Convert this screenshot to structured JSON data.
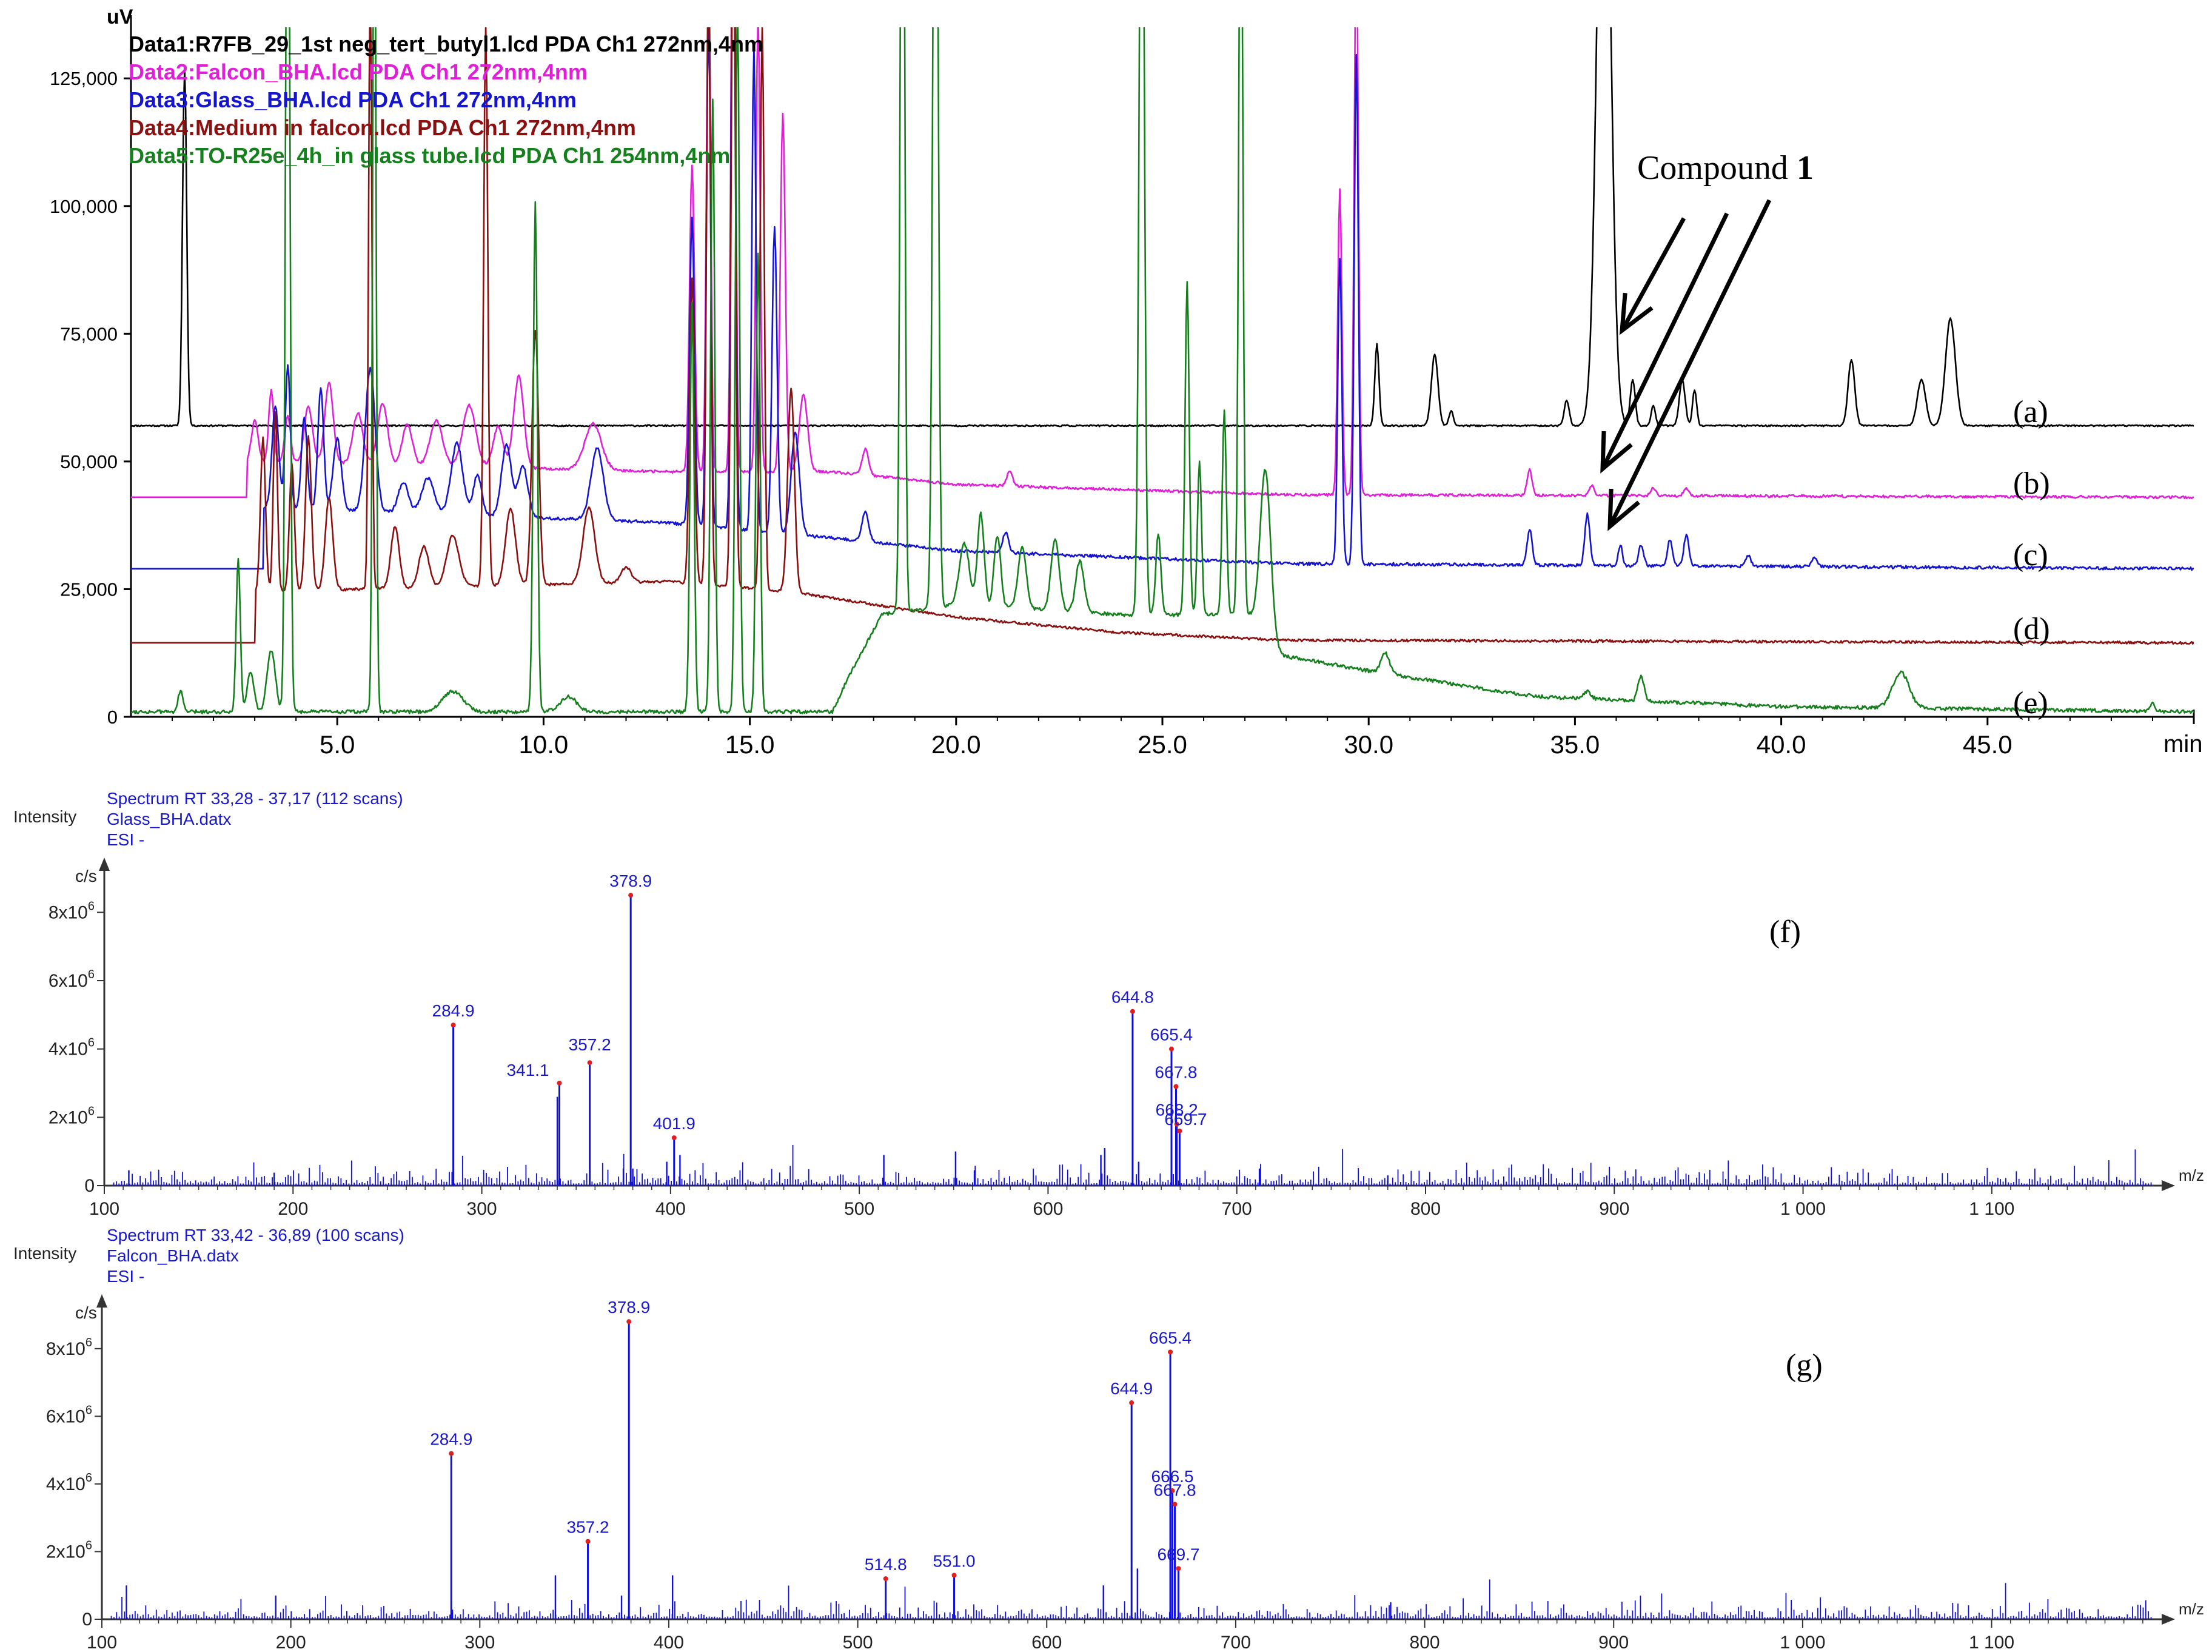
{
  "chart_data": [
    {
      "type": "line",
      "ylabel": "uV",
      "xunit": "min",
      "xlim": [
        0,
        50
      ],
      "ylim": [
        0,
        135000
      ],
      "xticks": [
        "5.0",
        "10.0",
        "15.0",
        "20.0",
        "25.0",
        "30.0",
        "35.0",
        "40.0",
        "45.0"
      ],
      "yticks": [
        "0",
        "25,000",
        "50,000",
        "75,000",
        "100,000",
        "125,000"
      ],
      "series": [
        {
          "name": "Data1:R7FB_29_1st neg_tert_butyl1.lcd PDA Ch1 272nm,4nm",
          "trace_label": "(a)",
          "color": "#000000",
          "baseline": 57000
        },
        {
          "name": "Data2:Falcon_BHA.lcd PDA Ch1 272nm,4nm",
          "trace_label": "(b)",
          "color": "#e020d8",
          "baseline": 43000
        },
        {
          "name": "Data3:Glass_BHA.lcd PDA Ch1 272nm,4nm",
          "trace_label": "(c)",
          "color": "#1515d0",
          "baseline": 29000
        },
        {
          "name": "Data4:Medium in falcon.lcd PDA Ch1 272nm,4nm",
          "trace_label": "(d)",
          "color": "#8b1010",
          "baseline": 14500
        },
        {
          "name": "Data5:TO-R25e_4h_in glass tube.lcd PDA Ch1 254nm,4nm",
          "trace_label": "(e)",
          "color": "#15801d",
          "baseline": 0
        }
      ],
      "annotation": {
        "text": "Compound ",
        "bold": "1"
      }
    },
    {
      "type": "bar",
      "panel_label": "(f)",
      "ylabel": "Intensity",
      "yunit": "c/s",
      "xunit": "m/z",
      "header": [
        "Spectrum RT 33,28 - 37,17 (112 scans)",
        "Glass_BHA.datx",
        "ESI -"
      ],
      "xlim": [
        100,
        1190
      ],
      "ylim": [
        0,
        9000000
      ],
      "xticks": [
        "100",
        "200",
        "300",
        "400",
        "500",
        "600",
        "700",
        "800",
        "900",
        "1 000",
        "1 100"
      ],
      "yticks": [
        {
          "base": "0",
          "exp": ""
        },
        {
          "base": "2x10",
          "exp": "6"
        },
        {
          "base": "4x10",
          "exp": "6"
        },
        {
          "base": "6x10",
          "exp": "6"
        },
        {
          "base": "8x10",
          "exp": "6"
        }
      ],
      "peaks": [
        {
          "mz": 284.9,
          "intensity": 4700000,
          "label": "284.9"
        },
        {
          "mz": 341.1,
          "intensity": 3000000,
          "label": "341.1"
        },
        {
          "mz": 357.2,
          "intensity": 3600000,
          "label": "357.2"
        },
        {
          "mz": 378.9,
          "intensity": 8500000,
          "label": "378.9"
        },
        {
          "mz": 401.9,
          "intensity": 1400000,
          "label": "401.9"
        },
        {
          "mz": 644.8,
          "intensity": 5100000,
          "label": "644.8"
        },
        {
          "mz": 665.4,
          "intensity": 4000000,
          "label": "665.4"
        },
        {
          "mz": 667.8,
          "intensity": 2900000,
          "label": "667.8"
        },
        {
          "mz": 668.2,
          "intensity": 1800000,
          "label": "668.2"
        },
        {
          "mz": 669.7,
          "intensity": 1600000,
          "label": "669.7"
        }
      ]
    },
    {
      "type": "bar",
      "panel_label": "(g)",
      "ylabel": "Intensity",
      "yunit": "c/s",
      "xunit": "m/z",
      "header": [
        "Spectrum RT 33,42 - 36,89 (100 scans)",
        "Falcon_BHA.datx",
        "ESI -"
      ],
      "xlim": [
        100,
        1190
      ],
      "ylim": [
        0,
        9000000
      ],
      "xticks": [
        "100",
        "200",
        "300",
        "400",
        "500",
        "600",
        "700",
        "800",
        "900",
        "1 000",
        "1 100"
      ],
      "yticks": [
        {
          "base": "0",
          "exp": ""
        },
        {
          "base": "2x10",
          "exp": "6"
        },
        {
          "base": "4x10",
          "exp": "6"
        },
        {
          "base": "6x10",
          "exp": "6"
        },
        {
          "base": "8x10",
          "exp": "6"
        }
      ],
      "peaks": [
        {
          "mz": 284.9,
          "intensity": 4900000,
          "label": "284.9"
        },
        {
          "mz": 357.2,
          "intensity": 2300000,
          "label": "357.2"
        },
        {
          "mz": 378.9,
          "intensity": 8800000,
          "label": "378.9"
        },
        {
          "mz": 514.8,
          "intensity": 1200000,
          "label": "514.8"
        },
        {
          "mz": 551.0,
          "intensity": 1300000,
          "label": "551.0"
        },
        {
          "mz": 644.9,
          "intensity": 6400000,
          "label": "644.9"
        },
        {
          "mz": 665.4,
          "intensity": 7900000,
          "label": "665.4"
        },
        {
          "mz": 666.5,
          "intensity": 3800000,
          "label": "666.5"
        },
        {
          "mz": 667.8,
          "intensity": 3400000,
          "label": "667.8"
        },
        {
          "mz": 669.7,
          "intensity": 1500000,
          "label": "669.7"
        }
      ]
    }
  ]
}
